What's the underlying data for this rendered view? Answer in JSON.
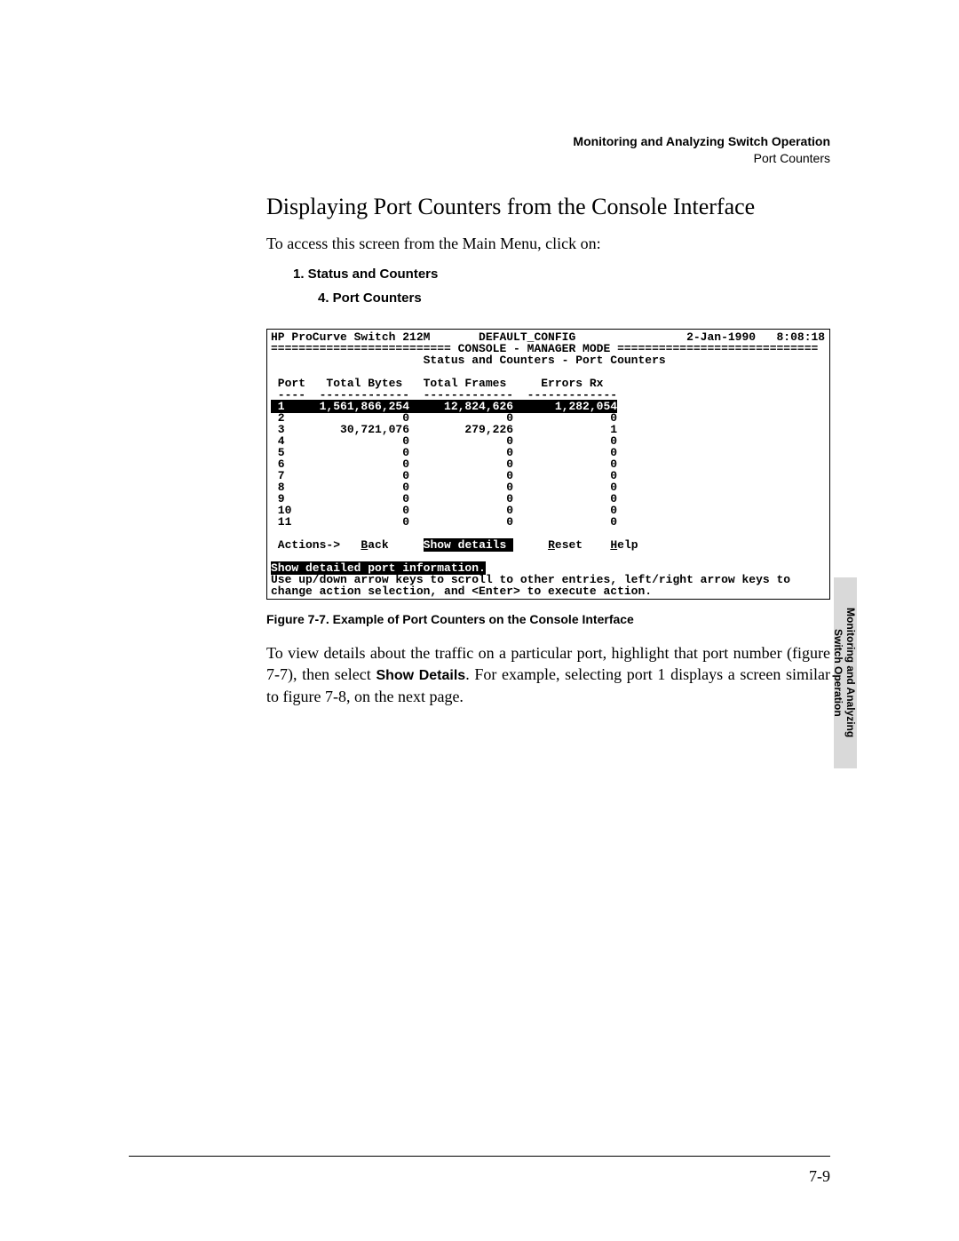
{
  "header": {
    "line1": "Monitoring and Analyzing Switch Operation",
    "line2": "Port Counters"
  },
  "section_title": "Displaying Port Counters from the Console Interface",
  "intro": "To access this screen from the Main Menu, click on:",
  "menu_step_1": "1. Status and Counters",
  "menu_step_2": "4. Port Counters",
  "terminal": {
    "device": "HP ProCurve Switch 212M",
    "config": "DEFAULT_CONFIG",
    "date": "2-Jan-1990",
    "time": "8:08:18",
    "dash_left": "==========================",
    "mode": " CONSOLE - MANAGER MODE ",
    "dash_right": "=============================",
    "subtitle": "Status and Counters - Port Counters",
    "cols": {
      "port": "Port",
      "bytes": "Total Bytes",
      "frames": "Total Frames",
      "errors": "Errors Rx"
    },
    "rule": {
      "port": "----",
      "bytes": "-------------",
      "frames": "-------------",
      "errors": "-------------"
    },
    "rows": [
      {
        "port": "1",
        "bytes": "1,561,866,254",
        "frames": "12,824,626",
        "errors": "1,282,054",
        "hl": true
      },
      {
        "port": "2",
        "bytes": "0",
        "frames": "0",
        "errors": "0"
      },
      {
        "port": "3",
        "bytes": "30,721,076",
        "frames": "279,226",
        "errors": "1"
      },
      {
        "port": "4",
        "bytes": "0",
        "frames": "0",
        "errors": "0"
      },
      {
        "port": "5",
        "bytes": "0",
        "frames": "0",
        "errors": "0"
      },
      {
        "port": "6",
        "bytes": "0",
        "frames": "0",
        "errors": "0"
      },
      {
        "port": "7",
        "bytes": "0",
        "frames": "0",
        "errors": "0"
      },
      {
        "port": "8",
        "bytes": "0",
        "frames": "0",
        "errors": "0"
      },
      {
        "port": "9",
        "bytes": "0",
        "frames": "0",
        "errors": "0"
      },
      {
        "port": "10",
        "bytes": "0",
        "frames": "0",
        "errors": "0"
      },
      {
        "port": "11",
        "bytes": "0",
        "frames": "0",
        "errors": "0"
      }
    ],
    "actions_label": "Actions->",
    "actions": {
      "back_pre": "B",
      "back_rest": "ack",
      "show_hl": "Show details ",
      "reset_pre": "R",
      "reset_rest": "eset",
      "help_pre": "H",
      "help_rest": "elp"
    },
    "status_hl": "Show detailed port information.",
    "hint1": "Use up/down arrow keys to scroll to other entries, left/right arrow keys to",
    "hint2": "change action selection, and <Enter> to execute action."
  },
  "figure_caption": "Figure 7-7.   Example of Port Counters on the Console Interface",
  "para2_a": "To view details about the traffic on a particular port, highlight that port number (figure 7-7), then select ",
  "para2_bold": "Show Details",
  "para2_b": ". For example, selecting port 1 displays a screen similar to figure 7-8, on the next page.",
  "side_tab_line1": "Monitoring and Analyzing",
  "side_tab_line2": "Switch Operation",
  "page_number": "7-9",
  "style": {
    "bg": "#ffffff",
    "text": "#000000",
    "tab_bg": "#d9d9d9",
    "mono_font": "Courier New",
    "serif_font": "Times New Roman",
    "sans_font": "Arial"
  }
}
